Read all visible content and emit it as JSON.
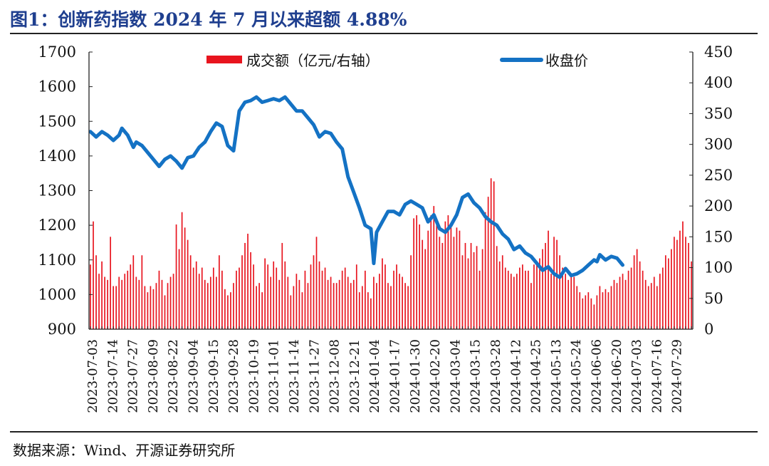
{
  "title": "图1：创新药指数 2024 年 7 月以来超额 4.88%",
  "source": "数据来源：Wind、开源证券研究所",
  "colors": {
    "bar": "#e8141e",
    "line": "#1472c4",
    "title": "#1f3f8f"
  },
  "chart_data": {
    "type": "bar+line",
    "legend": [
      "成交额（亿元/右轴）",
      "收盘价"
    ],
    "legend_position": "top",
    "left_axis": {
      "min": 900,
      "max": 1700,
      "step": 100,
      "ticks": [
        "1700",
        "1600",
        "1500",
        "1400",
        "1300",
        "1200",
        "1100",
        "1000",
        "900"
      ]
    },
    "right_axis": {
      "min": 0,
      "max": 450,
      "step": 50,
      "ticks": [
        "450",
        "400",
        "350",
        "300",
        "250",
        "200",
        "150",
        "100",
        "50",
        "0"
      ]
    },
    "date_labels": [
      "2023-07-03",
      "2023-07-14",
      "2023-07-27",
      "2023-08-09",
      "2023-08-22",
      "2023-09-04",
      "2023-09-15",
      "2023-09-28",
      "2023-10-19",
      "2023-11-01",
      "2023-11-14",
      "2023-11-27",
      "2023-12-08",
      "2023-12-21",
      "2024-01-04",
      "2024-01-17",
      "2024-01-30",
      "2024-02-20",
      "2024-03-04",
      "2024-03-15",
      "2024-03-28",
      "2024-04-12",
      "2024-04-25",
      "2024-05-13",
      "2024-05-24",
      "2024-06-06",
      "2024-06-20",
      "2024-07-03",
      "2024-07-16",
      "2024-07-29"
    ],
    "close_series": {
      "name": "收盘价",
      "points": [
        [
          0,
          1470
        ],
        [
          2,
          1455
        ],
        [
          4,
          1470
        ],
        [
          6,
          1460
        ],
        [
          8,
          1445
        ],
        [
          10,
          1460
        ],
        [
          11,
          1480
        ],
        [
          13,
          1460
        ],
        [
          15,
          1425
        ],
        [
          16,
          1440
        ],
        [
          18,
          1430
        ],
        [
          20,
          1410
        ],
        [
          22,
          1390
        ],
        [
          24,
          1370
        ],
        [
          26,
          1390
        ],
        [
          28,
          1400
        ],
        [
          30,
          1385
        ],
        [
          32,
          1365
        ],
        [
          34,
          1395
        ],
        [
          36,
          1400
        ],
        [
          38,
          1425
        ],
        [
          40,
          1440
        ],
        [
          42,
          1470
        ],
        [
          44,
          1495
        ],
        [
          46,
          1485
        ],
        [
          48,
          1430
        ],
        [
          50,
          1415
        ],
        [
          52,
          1530
        ],
        [
          54,
          1555
        ],
        [
          56,
          1560
        ],
        [
          58,
          1570
        ],
        [
          60,
          1555
        ],
        [
          62,
          1560
        ],
        [
          64,
          1565
        ],
        [
          66,
          1560
        ],
        [
          68,
          1570
        ],
        [
          70,
          1550
        ],
        [
          72,
          1530
        ],
        [
          74,
          1530
        ],
        [
          76,
          1510
        ],
        [
          78,
          1490
        ],
        [
          80,
          1455
        ],
        [
          82,
          1470
        ],
        [
          84,
          1465
        ],
        [
          86,
          1440
        ],
        [
          88,
          1420
        ],
        [
          90,
          1340
        ],
        [
          92,
          1295
        ],
        [
          94,
          1250
        ],
        [
          96,
          1200
        ],
        [
          98,
          1190
        ],
        [
          99,
          1090
        ],
        [
          100,
          1180
        ],
        [
          102,
          1210
        ],
        [
          104,
          1240
        ],
        [
          106,
          1240
        ],
        [
          108,
          1230
        ],
        [
          110,
          1260
        ],
        [
          112,
          1270
        ],
        [
          114,
          1260
        ],
        [
          116,
          1250
        ],
        [
          118,
          1210
        ],
        [
          120,
          1230
        ],
        [
          122,
          1190
        ],
        [
          124,
          1180
        ],
        [
          126,
          1200
        ],
        [
          128,
          1230
        ],
        [
          130,
          1280
        ],
        [
          132,
          1290
        ],
        [
          134,
          1265
        ],
        [
          136,
          1250
        ],
        [
          138,
          1225
        ],
        [
          140,
          1210
        ],
        [
          142,
          1200
        ],
        [
          144,
          1175
        ],
        [
          146,
          1160
        ],
        [
          148,
          1130
        ],
        [
          150,
          1140
        ],
        [
          152,
          1120
        ],
        [
          154,
          1110
        ],
        [
          156,
          1090
        ],
        [
          158,
          1070
        ],
        [
          160,
          1080
        ],
        [
          162,
          1060
        ],
        [
          164,
          1050
        ],
        [
          166,
          1075
        ],
        [
          168,
          1055
        ],
        [
          170,
          1060
        ],
        [
          172,
          1070
        ],
        [
          174,
          1085
        ],
        [
          176,
          1100
        ],
        [
          177,
          1095
        ],
        [
          178,
          1115
        ],
        [
          180,
          1100
        ],
        [
          182,
          1110
        ],
        [
          184,
          1105
        ],
        [
          186,
          1085
        ]
      ]
    },
    "turnover_series": {
      "name": "成交额",
      "unit": "亿元",
      "values": [
        105,
        175,
        120,
        90,
        110,
        85,
        80,
        150,
        70,
        70,
        85,
        80,
        90,
        95,
        105,
        120,
        85,
        80,
        120,
        70,
        60,
        70,
        65,
        75,
        95,
        80,
        55,
        75,
        85,
        90,
        170,
        130,
        190,
        165,
        145,
        120,
        100,
        110,
        90,
        100,
        80,
        75,
        85,
        100,
        85,
        120,
        95,
        65,
        55,
        60,
        75,
        95,
        100,
        120,
        140,
        155,
        125,
        105,
        70,
        75,
        60,
        115,
        105,
        85,
        110,
        100,
        80,
        140,
        110,
        85,
        55,
        70,
        90,
        80,
        60,
        95,
        75,
        105,
        120,
        150,
        110,
        95,
        100,
        80,
        85,
        75,
        75,
        80,
        95,
        100,
        85,
        75,
        80,
        105,
        60,
        70,
        95,
        60,
        50,
        85,
        75,
        90,
        115,
        105,
        75,
        70,
        95,
        105,
        90,
        85,
        75,
        70,
        120,
        180,
        185,
        170,
        145,
        130,
        160,
        185,
        200,
        175,
        150,
        140,
        175,
        185,
        170,
        150,
        165,
        160,
        120,
        140,
        115,
        140,
        125,
        135,
        95,
        130,
        190,
        215,
        245,
        240,
        135,
        110,
        120,
        100,
        95,
        90,
        85,
        90,
        100,
        105,
        95,
        95,
        75,
        105,
        110,
        115,
        130,
        140,
        160,
        90,
        150,
        145,
        120,
        100,
        90,
        80,
        90,
        85,
        70,
        60,
        50,
        55,
        60,
        50,
        40,
        55,
        70,
        60,
        65,
        60,
        70,
        80,
        75,
        85,
        90,
        80,
        95,
        100,
        120,
        130,
        110,
        95,
        80,
        70,
        75,
        85,
        70,
        90,
        100,
        120,
        115,
        130,
        150,
        145,
        160,
        175,
        150,
        140,
        110
      ]
    }
  }
}
